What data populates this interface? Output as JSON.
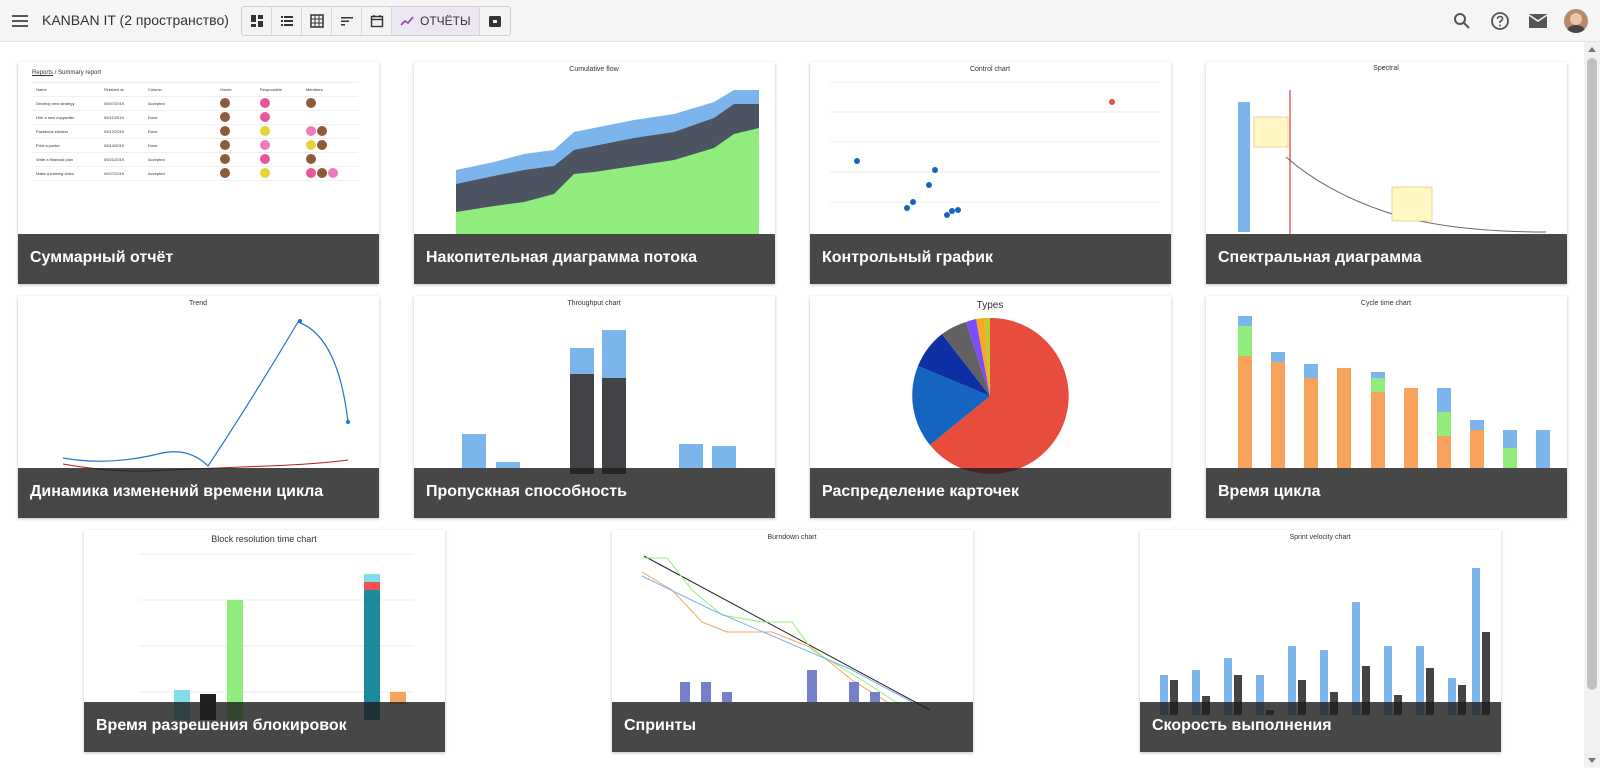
{
  "header": {
    "title": "KANBAN IT (2 пространство)",
    "reports_label": "ОТЧЁТЫ"
  },
  "tiles": {
    "summary": {
      "caption": "Суммарный отчёт",
      "breadcrumb_link": "Reports",
      "breadcrumb_current": "/ Summary report",
      "columns": [
        "Name",
        "Finished at",
        "Column",
        "Owner",
        "Responsible",
        "Members"
      ],
      "rows": [
        [
          "Develop new strategy",
          "09/07/2019",
          "Accepted"
        ],
        [
          "Hire a new copywriter",
          "09/11/2019",
          "Done"
        ],
        [
          "Facebook stickers",
          "09/12/2019",
          "Done"
        ],
        [
          "Print a poster",
          "09/14/2019",
          "Done"
        ],
        [
          "Write a financial plan",
          "09/21/2019",
          "Accepted"
        ],
        [
          "Make a training video",
          "09/27/2019",
          "Accepted"
        ]
      ]
    },
    "cumulative": {
      "caption": "Накопительная диаграмма потока",
      "chart_title": "Cumulative flow"
    },
    "control": {
      "caption": "Контрольный график",
      "chart_title": "Control chart"
    },
    "spectral": {
      "caption": "Спектральная диаграмма",
      "chart_title": "Spectral"
    },
    "trend": {
      "caption": "Динамика изменений времени цикла",
      "chart_title": "Trend"
    },
    "throughput": {
      "caption": "Пропускная способность",
      "chart_title": "Throughput chart"
    },
    "types": {
      "caption": "Распределение карточек",
      "chart_title": "Types"
    },
    "cycle": {
      "caption": "Время цикла",
      "chart_title": "Cycle time chart"
    },
    "block": {
      "caption": "Время разрешения блокировок",
      "chart_title": "Block resolution time chart"
    },
    "burndown": {
      "caption": "Спринты",
      "chart_title": "Burndown chart"
    },
    "velocity": {
      "caption": "Скорость выполнения",
      "chart_title": "Sprint velocity chart"
    }
  },
  "colors": {
    "topbar": "#f5f5f5",
    "caption_overlay": "#1e1e1e",
    "blue": "#7cb5ec",
    "dark": "#434348",
    "green": "#90ed7d",
    "orange": "#f7a35c",
    "red": "#e74c3c"
  }
}
